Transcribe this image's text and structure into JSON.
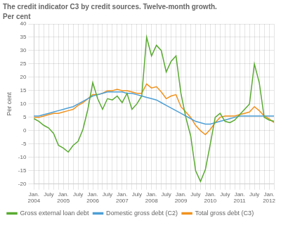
{
  "chart_data": {
    "type": "line",
    "title": "The credit indicator C3 by credit sources. Twelve-month growth.",
    "subtitle": "Per cent",
    "ylabel": "Per cent",
    "categories": [
      "Jan.\n2004",
      null,
      null,
      "July",
      null,
      null,
      "Jan.\n2005",
      null,
      null,
      "July",
      null,
      null,
      "Jan.\n2006",
      null,
      null,
      "July",
      null,
      null,
      "Jan.\n2007",
      null,
      null,
      "July",
      null,
      null,
      "Jan.\n2008",
      null,
      null,
      "July",
      null,
      null,
      "Jan.\n2009",
      null,
      null,
      "July",
      null,
      null,
      "Jan.\n2010",
      null,
      null,
      "July",
      null,
      null,
      "Jan.\n2011",
      null,
      null,
      "July",
      null,
      null,
      "Jan.\n2012",
      null
    ],
    "series": [
      {
        "name": "Gross external loan debt",
        "color": "#5aaa32",
        "values": [
          4.5,
          3.5,
          2.0,
          1.0,
          -1.0,
          -5.5,
          -6.5,
          -8.0,
          -5.5,
          -4.0,
          0.5,
          8.0,
          18.0,
          12.0,
          8.0,
          12.0,
          11.5,
          13.0,
          10.5,
          14.0,
          8.0,
          10.0,
          13.0,
          35.0,
          28.0,
          32.0,
          30.0,
          22.0,
          26.0,
          28.0,
          14.0,
          5.0,
          -2.0,
          -15.0,
          -19.0,
          -14.5,
          -5.0,
          5.0,
          6.5,
          3.5,
          3.0,
          4.0,
          6.0,
          8.0,
          10.0,
          25.0,
          18.0,
          5.0,
          4.0,
          3.5
        ]
      },
      {
        "name": "Domestic gross debt (C2)",
        "color": "#4d9fd6",
        "values": [
          5.5,
          5.5,
          6.0,
          6.5,
          7.0,
          7.5,
          8.0,
          8.5,
          9.0,
          10.0,
          11.0,
          12.0,
          13.0,
          13.5,
          14.0,
          14.5,
          14.5,
          14.5,
          14.5,
          14.0,
          14.0,
          13.5,
          13.0,
          12.5,
          12.0,
          11.5,
          10.5,
          9.5,
          8.5,
          7.5,
          6.5,
          5.5,
          4.5,
          3.5,
          3.0,
          2.5,
          2.5,
          3.0,
          3.5,
          4.0,
          4.5,
          5.0,
          5.5,
          5.5,
          5.5,
          5.5,
          5.5,
          5.5,
          5.5,
          5.5
        ]
      },
      {
        "name": "Total gross debt (C3)",
        "color": "#f0921e",
        "values": [
          5.0,
          5.0,
          5.5,
          6.0,
          6.5,
          6.5,
          7.0,
          7.5,
          8.0,
          9.5,
          10.5,
          12.0,
          13.5,
          13.5,
          14.0,
          15.0,
          15.0,
          15.5,
          15.0,
          15.0,
          14.5,
          14.0,
          14.0,
          17.5,
          16.0,
          16.5,
          14.5,
          12.0,
          13.0,
          13.5,
          9.0,
          7.0,
          5.0,
          2.0,
          0.0,
          -1.5,
          0.5,
          3.0,
          5.0,
          5.5,
          5.5,
          5.5,
          6.0,
          6.5,
          7.0,
          9.0,
          7.5,
          5.5,
          4.5,
          3.0
        ]
      }
    ],
    "ylim": [
      -20,
      40
    ],
    "yticks": [
      -20,
      -15,
      -10,
      -5,
      0,
      5,
      10,
      15,
      20,
      25,
      30,
      35,
      40
    ],
    "grid": true,
    "legend": "lower left"
  }
}
